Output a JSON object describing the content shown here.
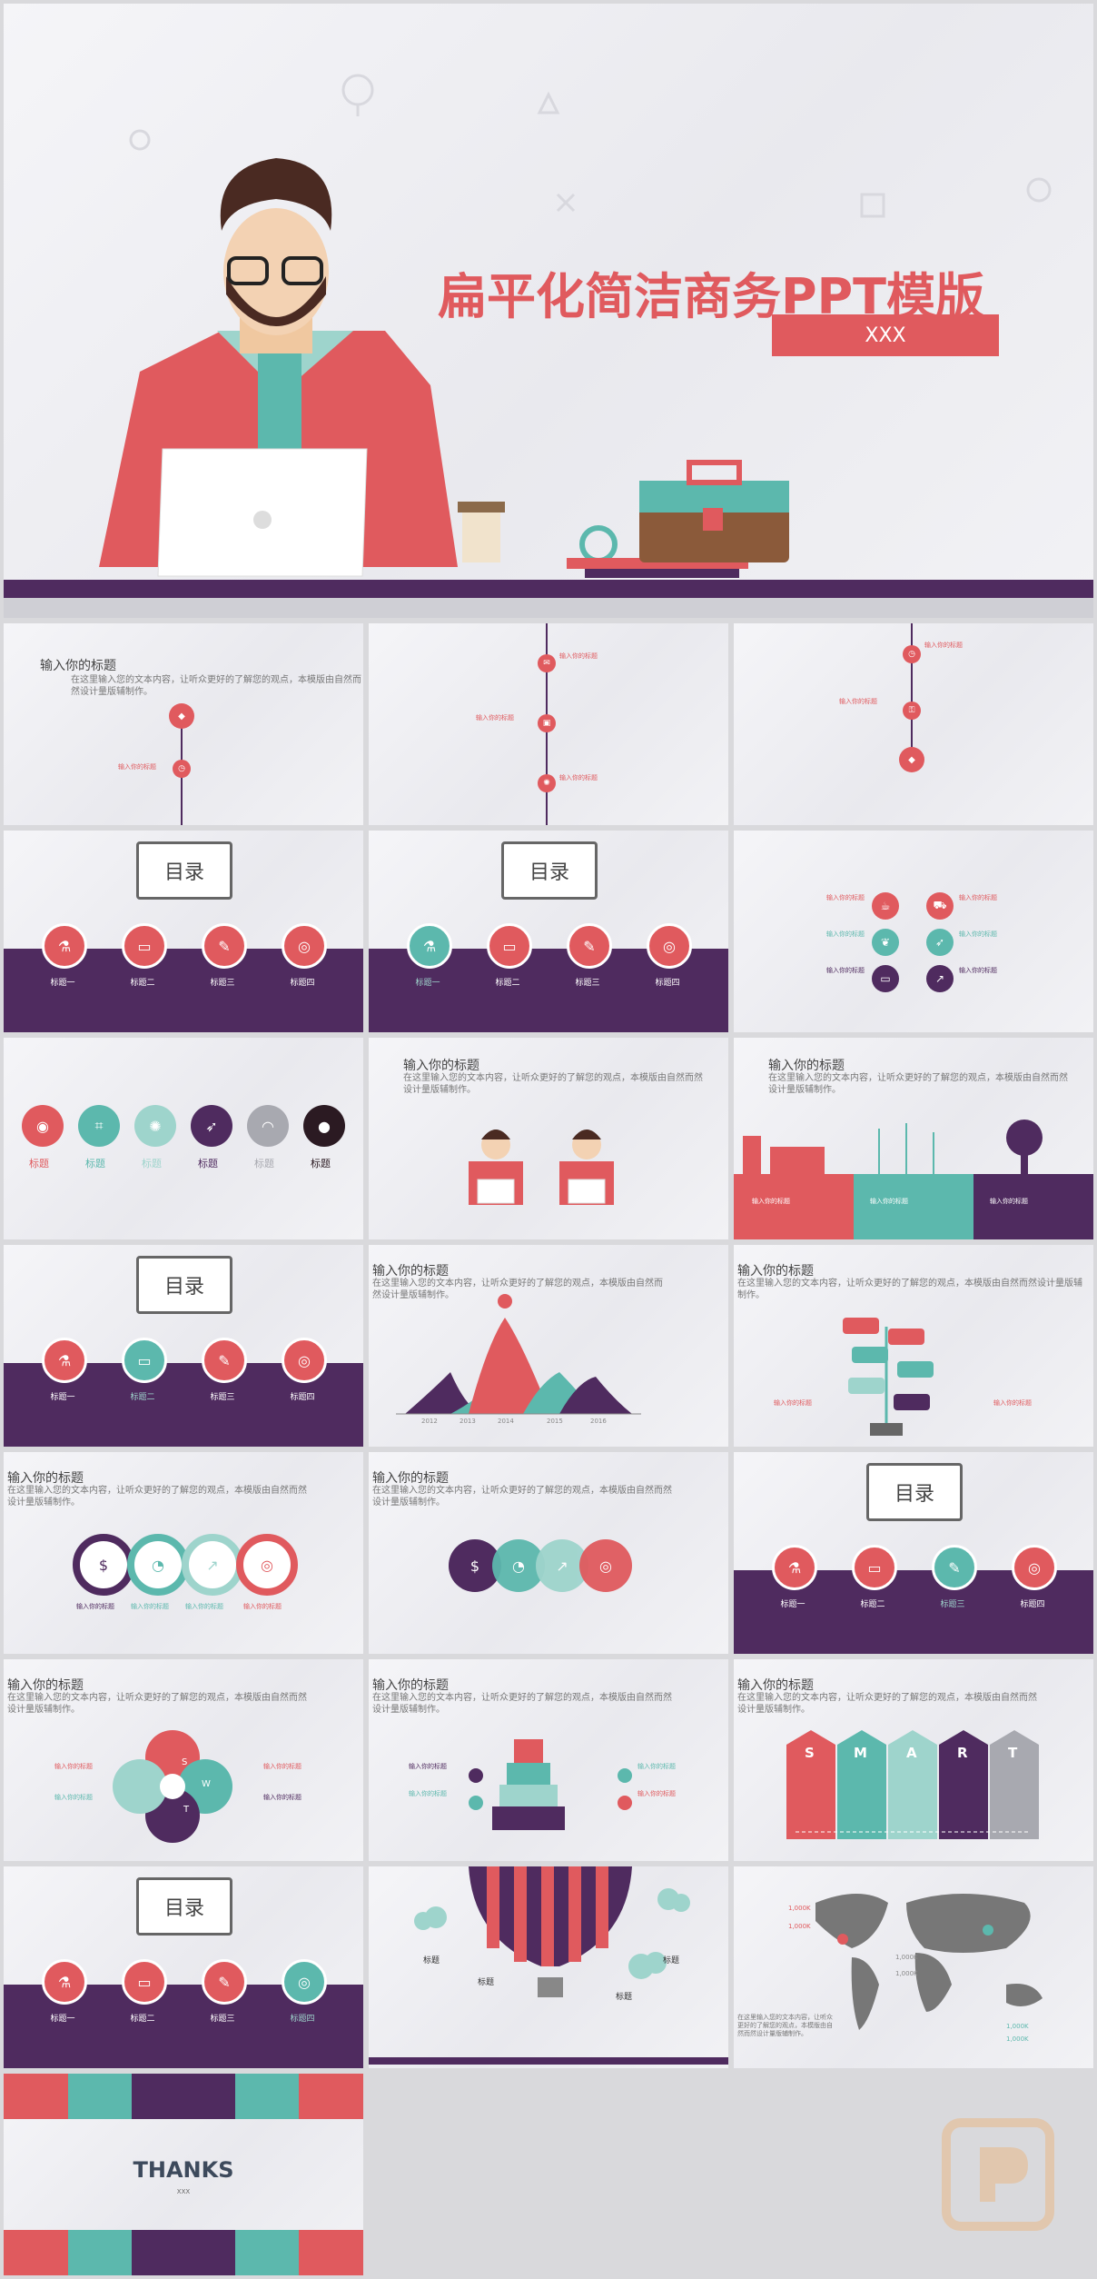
{
  "cover": {
    "title": "扁平化简洁商务PPT模版",
    "badge": "XXX"
  },
  "common": {
    "heading": "输入你的标题",
    "paragraph": "在这里输入您的文本内容，让听众更好的了解您的观点，本模版由自然而然设计量版辅制作。",
    "toc": "目录",
    "label": "标题",
    "item_title": "输入你的标题"
  },
  "toc_items": [
    "标题一",
    "标题二",
    "标题三",
    "标题四"
  ],
  "mountain_years": [
    "2012",
    "2013",
    "2014",
    "2015",
    "2016"
  ],
  "smart_letters": [
    "S",
    "M",
    "A",
    "R",
    "T"
  ],
  "swot_letters": [
    "S",
    "W",
    "T"
  ],
  "map_values": [
    "1,000K",
    "1,000K",
    "1,000K",
    "1,000K",
    "1,000K",
    "1,000K"
  ],
  "thanks": {
    "title": "THANKS",
    "sub": "XXX"
  },
  "colors": {
    "red": "#e05a5e",
    "teal": "#5cb8ad",
    "purple": "#4f2b5f",
    "lightteal": "#9ed4cc",
    "grey": "#a8a9b0"
  }
}
